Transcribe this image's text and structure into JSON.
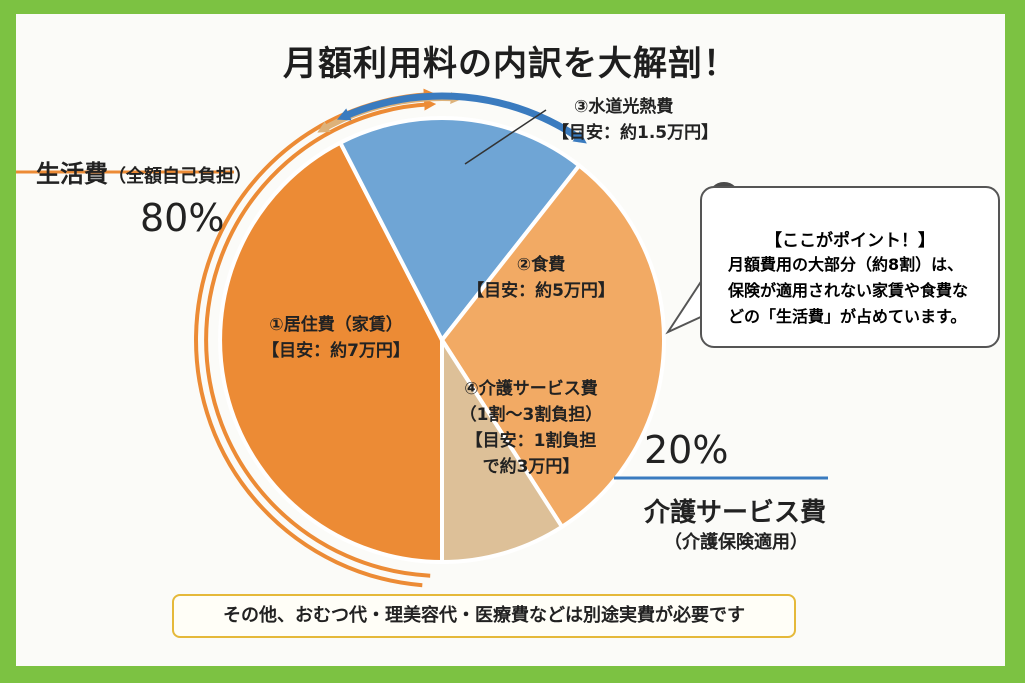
{
  "title": "月額利用料の内訳を大解剖！",
  "chart_data": {
    "type": "pie",
    "title": "月額利用料の内訳を大解剖！",
    "slices": [
      {
        "label": "①居住費（家賃）",
        "note": "【目安：約7万円】",
        "value": 7,
        "color": "#ec8b35"
      },
      {
        "label": "④介護サービス費",
        "note": "（1割～3割負担）",
        "note2": "【目安：1割負担",
        "note3": "で約3万円】",
        "value": 3,
        "color": "#6fa5d5"
      },
      {
        "label": "②食費",
        "note": "【目安：約5万円】",
        "value": 5,
        "color": "#f2aa64"
      },
      {
        "label": "③水道光熱費",
        "note": "【目安：約1.5万円】",
        "value": 1.5,
        "color": "#ddc098"
      }
    ],
    "groups": [
      {
        "name": "生活費",
        "sub": "（全額自己負担）",
        "percent": "80%",
        "color": "#ec8b35"
      },
      {
        "name": "介護サービス費",
        "sub": "（介護保険適用）",
        "percent": "20%",
        "color": "#3a7bbf"
      }
    ]
  },
  "callout": {
    "title": "【ここがポイント！】",
    "lines": [
      "月額費用の大部分（約8割）は、",
      "保険が適用されない家賃や食費な",
      "どの「生活費」が占めています。"
    ]
  },
  "footer": "その他、おむつ代・理美容代・医療費などは別途実費が必要です"
}
